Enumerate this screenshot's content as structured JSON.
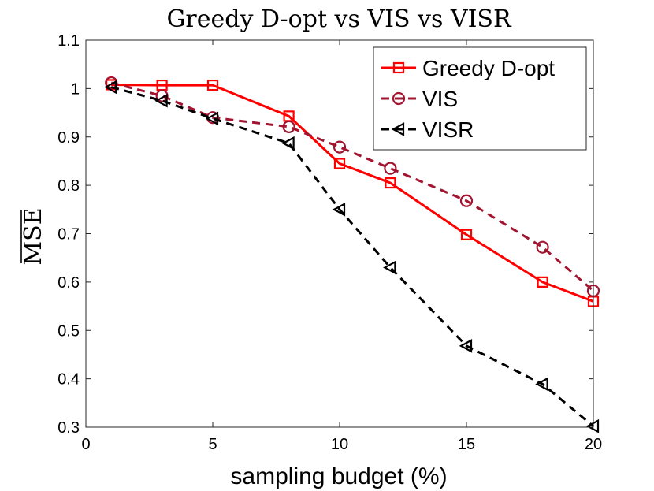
{
  "chart_data": {
    "type": "line",
    "title": "Greedy D-opt vs VIS vs VISR",
    "xlabel": "sampling budget (%)",
    "ylabel": "MSE",
    "xlim": [
      0,
      20
    ],
    "ylim": [
      0.3,
      1.1
    ],
    "xticks": [
      "0",
      "5",
      "10",
      "15",
      "20"
    ],
    "yticks": [
      "0.3",
      "0.4",
      "0.5",
      "0.6",
      "0.7",
      "0.8",
      "0.9",
      "1",
      "1.1"
    ],
    "legend_position": "top-right",
    "series": [
      {
        "name": "Greedy D-opt",
        "color": "#ff0000",
        "line_style": "solid",
        "marker": "square",
        "x": [
          1,
          3,
          5,
          8,
          10,
          12,
          15,
          18,
          20
        ],
        "values": [
          1.008,
          1.007,
          1.007,
          0.943,
          0.845,
          0.805,
          0.698,
          0.6,
          0.56
        ]
      },
      {
        "name": "VIS",
        "color": "#a2142f",
        "line_style": "dashed",
        "marker": "circle",
        "x": [
          1,
          3,
          5,
          8,
          10,
          12,
          15,
          18,
          20
        ],
        "values": [
          1.012,
          0.985,
          0.94,
          0.921,
          0.879,
          0.835,
          0.768,
          0.672,
          0.582
        ]
      },
      {
        "name": "VISR",
        "color": "#000000",
        "line_style": "dashed",
        "marker": "triangle-left",
        "x": [
          1,
          3,
          5,
          8,
          10,
          12,
          15,
          18,
          20
        ],
        "values": [
          1.003,
          0.975,
          0.938,
          0.887,
          0.75,
          0.63,
          0.468,
          0.389,
          0.302
        ]
      }
    ]
  }
}
